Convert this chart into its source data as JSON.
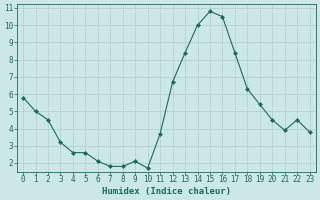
{
  "x": [
    0,
    1,
    2,
    3,
    4,
    5,
    6,
    7,
    8,
    9,
    10,
    11,
    12,
    13,
    14,
    15,
    16,
    17,
    18,
    19,
    20,
    21,
    22,
    23
  ],
  "y": [
    5.8,
    5.0,
    4.5,
    3.2,
    2.6,
    2.6,
    2.1,
    1.8,
    1.8,
    2.1,
    1.7,
    3.7,
    6.7,
    8.4,
    10.0,
    10.8,
    10.5,
    8.4,
    6.3,
    5.4,
    4.5,
    3.9,
    4.5,
    3.8
  ],
  "xlabel": "Humidex (Indice chaleur)",
  "ylim": [
    1.5,
    11.2
  ],
  "xlim": [
    -0.5,
    23.5
  ],
  "yticks": [
    2,
    3,
    4,
    5,
    6,
    7,
    8,
    9,
    10,
    11
  ],
  "xticks": [
    0,
    1,
    2,
    3,
    4,
    5,
    6,
    7,
    8,
    9,
    10,
    11,
    12,
    13,
    14,
    15,
    16,
    17,
    18,
    19,
    20,
    21,
    22,
    23
  ],
  "line_color": "#1a6b5a",
  "marker": "D",
  "marker_size": 2.0,
  "bg_color": "#cce8e6",
  "grid_color": "#b0ceca",
  "axis_color": "#1a6b5a",
  "label_color": "#1a6b5a",
  "tick_color": "#1a6b5a",
  "xlabel_fontsize": 6.5,
  "tick_fontsize": 5.5
}
